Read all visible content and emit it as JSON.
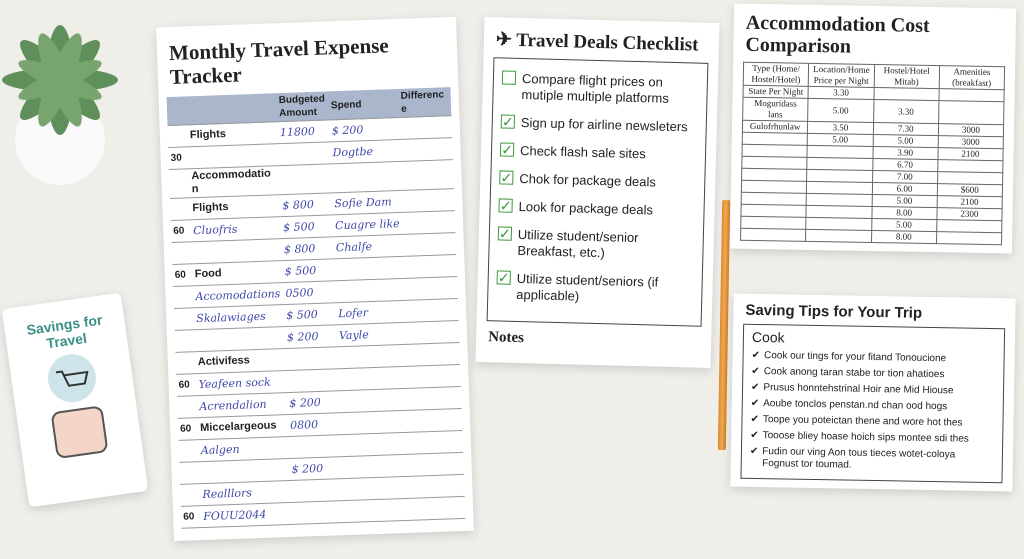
{
  "tracker": {
    "title": "Monthly Travel Expense Tracker",
    "headers": [
      "",
      "Budgeted Amount",
      "Spend",
      "Difference"
    ],
    "rows": [
      {
        "num": "",
        "label": "Flights",
        "budget": "11800",
        "spend": "$ 200",
        "section": true
      },
      {
        "num": "30",
        "label": "",
        "budget": "",
        "spend": "Dogtbe",
        "section": false
      },
      {
        "num": "",
        "label": "Accommodation",
        "budget": "",
        "spend": "",
        "section": true
      },
      {
        "num": "",
        "label": "Flights",
        "budget": "$ 800",
        "spend": "Sofie Dam",
        "section": true
      },
      {
        "num": "60",
        "label": "Cluofris",
        "budget": "$ 500",
        "spend": "Cuagre like",
        "section": false
      },
      {
        "num": "",
        "label": "",
        "budget": "$ 800",
        "spend": "Chalfe",
        "section": false
      },
      {
        "num": "60",
        "label": "Food",
        "budget": "$ 500",
        "spend": "",
        "section": true
      },
      {
        "num": "",
        "label": "Accomodations",
        "budget": "0500",
        "spend": "",
        "section": false
      },
      {
        "num": "",
        "label": "Skalawiages",
        "budget": "$ 500",
        "spend": "Lofer",
        "section": false
      },
      {
        "num": "",
        "label": "",
        "budget": "$ 200",
        "spend": "Vayle",
        "section": false
      },
      {
        "num": "",
        "label": "Activifess",
        "budget": "",
        "spend": "",
        "section": true
      },
      {
        "num": "60",
        "label": "Yeafeen sock",
        "budget": "",
        "spend": "",
        "section": false
      },
      {
        "num": "",
        "label": "Acrendalion",
        "budget": "$ 200",
        "spend": "",
        "section": false
      },
      {
        "num": "60",
        "label": "Miccelargeous",
        "budget": "0800",
        "spend": "",
        "section": true
      },
      {
        "num": "",
        "label": "Aalgen",
        "budget": "",
        "spend": "",
        "section": false
      },
      {
        "num": "",
        "label": "",
        "budget": "$ 200",
        "spend": "",
        "section": false
      },
      {
        "num": "",
        "label": "Realllors",
        "budget": "",
        "spend": "",
        "section": false
      },
      {
        "num": "60",
        "label": "FOUU2044",
        "budget": "",
        "spend": "",
        "section": false
      }
    ]
  },
  "accommodation": {
    "title": "Accommodation Cost Comparison",
    "headers": [
      "Type (Home/ Hostel/Hotel)",
      "Location/Home Price per Night",
      "Hostel/Hotel Mitab)",
      "Amenities (breakfast)"
    ],
    "rows": [
      [
        "State Per Night",
        "3.30",
        "",
        ""
      ],
      [
        "Moguridass lans",
        "5.00",
        "3.30",
        ""
      ],
      [
        "Gulofrhunlaw",
        "3.50",
        "7.30",
        "3000"
      ],
      [
        "",
        "5.00",
        "5.00",
        "3000"
      ],
      [
        "",
        "",
        "3.90",
        "2100"
      ],
      [
        "",
        "",
        "6.70",
        ""
      ],
      [
        "",
        "",
        "7.00",
        ""
      ],
      [
        "",
        "",
        "6.00",
        "$600"
      ],
      [
        "",
        "",
        "5.00",
        "2100"
      ],
      [
        "",
        "",
        "8.00",
        "2300"
      ],
      [
        "",
        "",
        "5.00",
        ""
      ],
      [
        "",
        "",
        "8.00",
        ""
      ]
    ]
  },
  "checklist": {
    "title": "Travel Deals Checklist",
    "items": [
      {
        "text": "Compare flight prices on mutiple multiple platforms",
        "checked": false
      },
      {
        "text": "Sign up for airline newsleters",
        "checked": true
      },
      {
        "text": "Check flash sale sites",
        "checked": true
      },
      {
        "text": "Chok for package deals",
        "checked": true
      },
      {
        "text": "Look for package deals",
        "checked": true
      },
      {
        "text": "Utilize student/senior Breakfast, etc.)",
        "checked": true
      },
      {
        "text": "Utilize student/seniors (if applicable)",
        "checked": true
      }
    ],
    "notes": "Notes"
  },
  "tips": {
    "title": "Saving Tips for Your Trip",
    "subtitle": "Cook",
    "items": [
      "Cook our tings for your fitand Tonoucione",
      "Cook anong taran stabe tor tion ahatioes",
      "Prusus honntehstrinal Hoir ane Mid Hiouse",
      "Aoube tonclos penstan.nd chan ood hogs",
      "Toope you poteictan thene and wore hot thes",
      "Tooose bliey hoase hoich sips montee sdi thes",
      "Fudin our ving Aon tous tieces wotet-coloya Fognust tor toumad."
    ]
  },
  "card": {
    "text": "Savings for Travel"
  }
}
